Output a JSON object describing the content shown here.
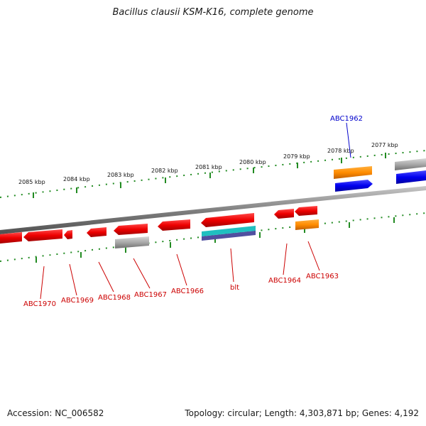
{
  "header": {
    "title": "Bacillus clausii KSM-K16, complete genome"
  },
  "footer": {
    "accession": "Accession: NC_006582",
    "summary": "Topology: circular; Length: 4,303,871 bp; Genes: 4,192"
  },
  "ruler": {
    "ticks": [
      "2085 kbp",
      "2084 kbp",
      "2083 kbp",
      "2082 kbp",
      "2081 kbp",
      "2080 kbp",
      "2079 kbp",
      "2078 kbp",
      "2077 kbp"
    ]
  },
  "genes": {
    "top_labels": [
      {
        "text": "ABC1962",
        "color": "#0000cc"
      }
    ],
    "bottom_labels": [
      {
        "text": "ABC1970",
        "color": "#cc0000"
      },
      {
        "text": "ABC1969",
        "color": "#cc0000"
      },
      {
        "text": "ABC1968",
        "color": "#cc0000"
      },
      {
        "text": "ABC1967",
        "color": "#cc0000"
      },
      {
        "text": "ABC1966",
        "color": "#cc0000"
      },
      {
        "text": "blt",
        "color": "#cc0000"
      },
      {
        "text": "ABC1964",
        "color": "#cc0000"
      },
      {
        "text": "ABC1963",
        "color": "#cc0000"
      }
    ]
  },
  "colors": {
    "forward_cds": "#0000ee",
    "reverse_cds": "#ee0000",
    "rna": "#ff8c00",
    "other": "#a0a0a0",
    "backbone": "#888888",
    "tick": "#228b22"
  }
}
